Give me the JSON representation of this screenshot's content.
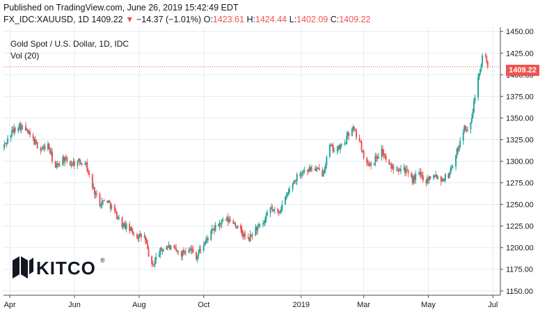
{
  "header": {
    "published": "Published on TradingView.com, June 26, 2019 15:42:49 EDT",
    "symbol": "FX_IDC:XAUUSD, 1D",
    "last": "1409.22",
    "arrow": "▼",
    "change": "−14.37 (−1.01%)",
    "o_label": "O:",
    "o_value": "1423.61",
    "h_label": "H:",
    "h_value": "1424.44",
    "l_label": "L:",
    "l_value": "1402.09",
    "c_label": "C:",
    "c_value": "1409.22"
  },
  "legend": {
    "title": "Gold Spot / U.S. Dollar, 1D, IDC",
    "volume": "Vol (20)"
  },
  "last_price_label": "1409.22",
  "logo": {
    "text": "KITCO",
    "mark": "®"
  },
  "colors": {
    "up": "#26a69a",
    "down": "#ef5350",
    "grid": "#e1ecf2",
    "axis": "#4a4a4a",
    "price_line": "#ef5350"
  },
  "chart_data": {
    "type": "candlestick",
    "title": "Gold Spot / U.S. Dollar, 1D, IDC",
    "ylim": [
      1145,
      1455
    ],
    "yticks": [
      1150,
      1175,
      1200,
      1225,
      1250,
      1275,
      1300,
      1325,
      1350,
      1375,
      1400,
      1425,
      1450
    ],
    "ytick_labels": [
      "1150.00",
      "1175.00",
      "1200.00",
      "1225.00",
      "1250.00",
      "1275.00",
      "1300.00",
      "1325.00",
      "1350.00",
      "1375.00",
      "1400.00",
      "1425.00",
      "1450.00"
    ],
    "x_start": "2018-03-26",
    "x_end": "2019-07-08",
    "xticks": [
      {
        "date": "2018-04-01",
        "label": "Apr"
      },
      {
        "date": "2018-06-01",
        "label": "Jun"
      },
      {
        "date": "2018-08-01",
        "label": "Aug"
      },
      {
        "date": "2018-10-01",
        "label": "Oct"
      },
      {
        "date": "2019-01-01",
        "label": "2019"
      },
      {
        "date": "2019-03-01",
        "label": "Mar"
      },
      {
        "date": "2019-05-01",
        "label": "May"
      },
      {
        "date": "2019-07-01",
        "label": "Jul"
      }
    ],
    "last_price": 1409.22,
    "close_path": [
      [
        "2018-03-26",
        1316
      ],
      [
        "2018-04-02",
        1332
      ],
      [
        "2018-04-09",
        1342
      ],
      [
        "2018-04-16",
        1336
      ],
      [
        "2018-04-23",
        1324
      ],
      [
        "2018-04-30",
        1314
      ],
      [
        "2018-05-07",
        1318
      ],
      [
        "2018-05-14",
        1292
      ],
      [
        "2018-05-21",
        1303
      ],
      [
        "2018-05-28",
        1297
      ],
      [
        "2018-06-04",
        1299
      ],
      [
        "2018-06-11",
        1300
      ],
      [
        "2018-06-18",
        1270
      ],
      [
        "2018-06-25",
        1252
      ],
      [
        "2018-07-02",
        1255
      ],
      [
        "2018-07-09",
        1241
      ],
      [
        "2018-07-16",
        1227
      ],
      [
        "2018-07-23",
        1221
      ],
      [
        "2018-07-30",
        1214
      ],
      [
        "2018-08-06",
        1212
      ],
      [
        "2018-08-13",
        1178
      ],
      [
        "2018-08-20",
        1195
      ],
      [
        "2018-08-27",
        1202
      ],
      [
        "2018-09-03",
        1197
      ],
      [
        "2018-09-10",
        1193
      ],
      [
        "2018-09-17",
        1201
      ],
      [
        "2018-09-24",
        1190
      ],
      [
        "2018-10-01",
        1204
      ],
      [
        "2018-10-08",
        1217
      ],
      [
        "2018-10-15",
        1227
      ],
      [
        "2018-10-22",
        1232
      ],
      [
        "2018-10-29",
        1230
      ],
      [
        "2018-11-05",
        1218
      ],
      [
        "2018-11-12",
        1208
      ],
      [
        "2018-11-19",
        1222
      ],
      [
        "2018-11-26",
        1226
      ],
      [
        "2018-12-03",
        1245
      ],
      [
        "2018-12-10",
        1240
      ],
      [
        "2018-12-17",
        1256
      ],
      [
        "2018-12-24",
        1275
      ],
      [
        "2018-12-31",
        1287
      ],
      [
        "2019-01-07",
        1291
      ],
      [
        "2019-01-14",
        1291
      ],
      [
        "2019-01-21",
        1286
      ],
      [
        "2019-01-28",
        1316
      ],
      [
        "2019-02-04",
        1313
      ],
      [
        "2019-02-11",
        1321
      ],
      [
        "2019-02-18",
        1340
      ],
      [
        "2019-02-25",
        1323
      ],
      [
        "2019-03-04",
        1296
      ],
      [
        "2019-03-11",
        1301
      ],
      [
        "2019-03-18",
        1313
      ],
      [
        "2019-03-25",
        1294
      ],
      [
        "2019-04-01",
        1293
      ],
      [
        "2019-04-08",
        1292
      ],
      [
        "2019-04-15",
        1278
      ],
      [
        "2019-04-22",
        1285
      ],
      [
        "2019-04-29",
        1278
      ],
      [
        "2019-05-06",
        1286
      ],
      [
        "2019-05-13",
        1279
      ],
      [
        "2019-05-20",
        1284
      ],
      [
        "2019-05-27",
        1306
      ],
      [
        "2019-06-03",
        1337
      ],
      [
        "2019-06-10",
        1341
      ],
      [
        "2019-06-17",
        1400
      ],
      [
        "2019-06-21",
        1420
      ],
      [
        "2019-06-24",
        1423
      ],
      [
        "2019-06-26",
        1409
      ]
    ]
  }
}
